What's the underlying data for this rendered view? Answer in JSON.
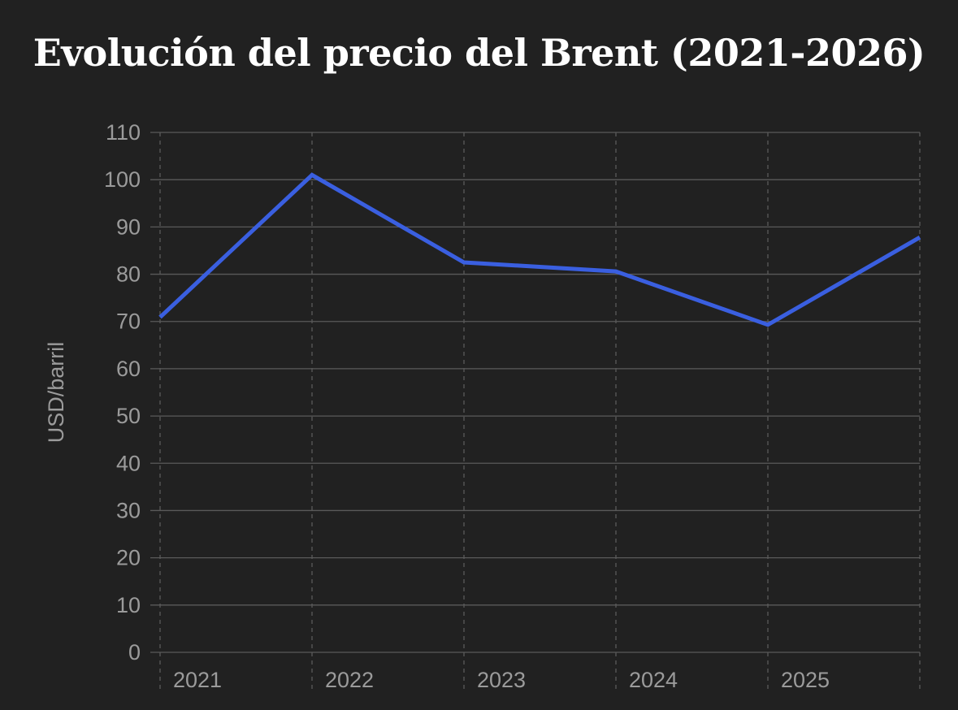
{
  "chart_data": {
    "type": "line",
    "title": "Evolución del precio del Brent (2021-2026)",
    "xlabel": "",
    "ylabel": "USD/barril",
    "x": [
      2021,
      2022,
      2023,
      2024,
      2025,
      2026
    ],
    "x_tick_labels": [
      "2021",
      "2022",
      "2023",
      "2024",
      "2025"
    ],
    "xlim": [
      2021,
      2026
    ],
    "ylim": [
      0,
      110
    ],
    "y_ticks": [
      0,
      10,
      20,
      30,
      40,
      50,
      60,
      70,
      80,
      90,
      100,
      110
    ],
    "series": [
      {
        "values": [
          70.9,
          101.0,
          82.5,
          80.6,
          69.3,
          87.8
        ],
        "color": "#3a5fe0"
      }
    ],
    "grid": {
      "horizontal": "solid",
      "vertical": "dashed"
    },
    "legend": "none",
    "colors": {
      "background": "#212121",
      "grid": "#5a5a5a",
      "text": "#9b9b9b",
      "title": "#ffffff"
    }
  }
}
